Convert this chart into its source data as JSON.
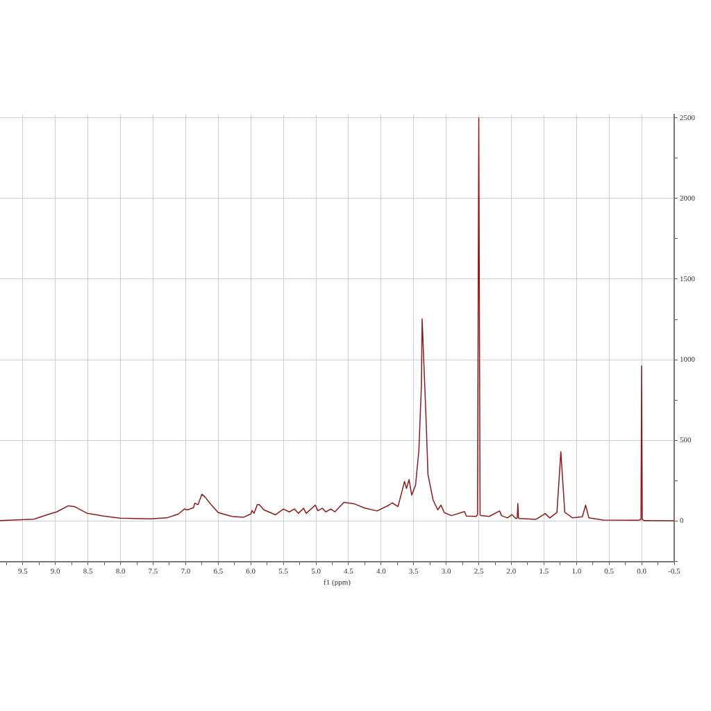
{
  "chart_data": {
    "type": "line",
    "xlabel": "f1 (ppm)",
    "xlim": [
      9.85,
      -0.5
    ],
    "xticks": [
      {
        "value": 9.75,
        "label": null
      },
      {
        "value": 9.5,
        "label": "9.5"
      },
      {
        "value": 9.25,
        "label": null
      },
      {
        "value": 9.0,
        "label": "9.0"
      },
      {
        "value": 8.75,
        "label": null
      },
      {
        "value": 8.5,
        "label": "8.5"
      },
      {
        "value": 8.25,
        "label": null
      },
      {
        "value": 8.0,
        "label": "8.0"
      },
      {
        "value": 7.75,
        "label": null
      },
      {
        "value": 7.5,
        "label": "7.5"
      },
      {
        "value": 7.25,
        "label": null
      },
      {
        "value": 7.0,
        "label": "7.0"
      },
      {
        "value": 6.75,
        "label": null
      },
      {
        "value": 6.5,
        "label": "6.5"
      },
      {
        "value": 6.25,
        "label": null
      },
      {
        "value": 6.0,
        "label": "6.0"
      },
      {
        "value": 5.75,
        "label": null
      },
      {
        "value": 5.5,
        "label": "5.5"
      },
      {
        "value": 5.25,
        "label": null
      },
      {
        "value": 5.0,
        "label": "5.0"
      },
      {
        "value": 4.75,
        "label": null
      },
      {
        "value": 4.5,
        "label": "4.5"
      },
      {
        "value": 4.25,
        "label": null
      },
      {
        "value": 4.0,
        "label": "4.0"
      },
      {
        "value": 3.75,
        "label": null
      },
      {
        "value": 3.5,
        "label": "3.5"
      },
      {
        "value": 3.25,
        "label": null
      },
      {
        "value": 3.0,
        "label": "3.0"
      },
      {
        "value": 2.75,
        "label": null
      },
      {
        "value": 2.5,
        "label": "2.5"
      },
      {
        "value": 2.25,
        "label": null
      },
      {
        "value": 2.0,
        "label": "2.0"
      },
      {
        "value": 1.75,
        "label": null
      },
      {
        "value": 1.5,
        "label": "1.5"
      },
      {
        "value": 1.25,
        "label": null
      },
      {
        "value": 1.0,
        "label": "1.0"
      },
      {
        "value": 0.75,
        "label": null
      },
      {
        "value": 0.5,
        "label": "0.5"
      },
      {
        "value": 0.25,
        "label": null
      },
      {
        "value": 0.0,
        "label": "0.0"
      },
      {
        "value": -0.25,
        "label": null
      },
      {
        "value": -0.5,
        "label": "-0.5"
      }
    ],
    "ylim": [
      -250,
      2520
    ],
    "yticks": [
      {
        "value": -250,
        "label": null
      },
      0,
      {
        "value": 250,
        "label": null
      },
      500,
      {
        "value": 750,
        "label": null
      },
      1000,
      {
        "value": 1250,
        "label": null
      },
      1500,
      {
        "value": 1750,
        "label": null
      },
      2000,
      {
        "value": 2250,
        "label": null
      },
      2500
    ],
    "grid": true,
    "series": [
      {
        "color": "#8b1a1a",
        "x": [
          9.85,
          9.33,
          9.09,
          8.98,
          8.8,
          8.7,
          8.51,
          8.26,
          8.01,
          7.54,
          7.29,
          7.11,
          7.02,
          6.97,
          6.88,
          6.86,
          6.81,
          6.75,
          6.7,
          6.61,
          6.5,
          6.29,
          6.11,
          6.0,
          5.98,
          5.95,
          5.9,
          5.87,
          5.8,
          5.62,
          5.5,
          5.41,
          5.33,
          5.27,
          5.19,
          5.15,
          5.01,
          4.97,
          4.9,
          4.85,
          4.77,
          4.71,
          4.57,
          4.41,
          4.25,
          4.06,
          3.88,
          3.83,
          3.74,
          3.64,
          3.61,
          3.57,
          3.53,
          3.47,
          3.42,
          3.38,
          3.37,
          3.36,
          3.31,
          3.28,
          3.2,
          3.13,
          3.08,
          3.03,
          2.92,
          2.72,
          2.69,
          2.54,
          2.52,
          2.5,
          2.48,
          2.47,
          2.34,
          2.18,
          2.15,
          2.06,
          1.99,
          1.93,
          1.91,
          1.9,
          1.89,
          1.88,
          1.62,
          1.48,
          1.41,
          1.3,
          1.24,
          1.18,
          1.06,
          0.91,
          0.86,
          0.81,
          0.59,
          0.05,
          0.01,
          0.0,
          -0.01,
          -0.04,
          -0.5
        ],
        "values": [
          3,
          12,
          44,
          57,
          95,
          89,
          48,
          31,
          18,
          14,
          20,
          44,
          75,
          70,
          83,
          111,
          102,
          167,
          148,
          102,
          53,
          29,
          24,
          44,
          66,
          48,
          102,
          102,
          70,
          39,
          75,
          57,
          75,
          48,
          80,
          48,
          99,
          64,
          80,
          57,
          75,
          57,
          116,
          107,
          81,
          63,
          99,
          113,
          90,
          246,
          202,
          257,
          161,
          224,
          436,
          846,
          1254,
          1153,
          640,
          289,
          129,
          70,
          99,
          53,
          34,
          59,
          31,
          29,
          40,
          2500,
          40,
          34,
          29,
          63,
          34,
          20,
          40,
          16,
          20,
          110,
          20,
          16,
          11,
          47,
          20,
          53,
          430,
          55,
          20,
          27,
          99,
          20,
          7,
          5,
          10,
          962,
          10,
          3,
          2
        ]
      }
    ]
  }
}
